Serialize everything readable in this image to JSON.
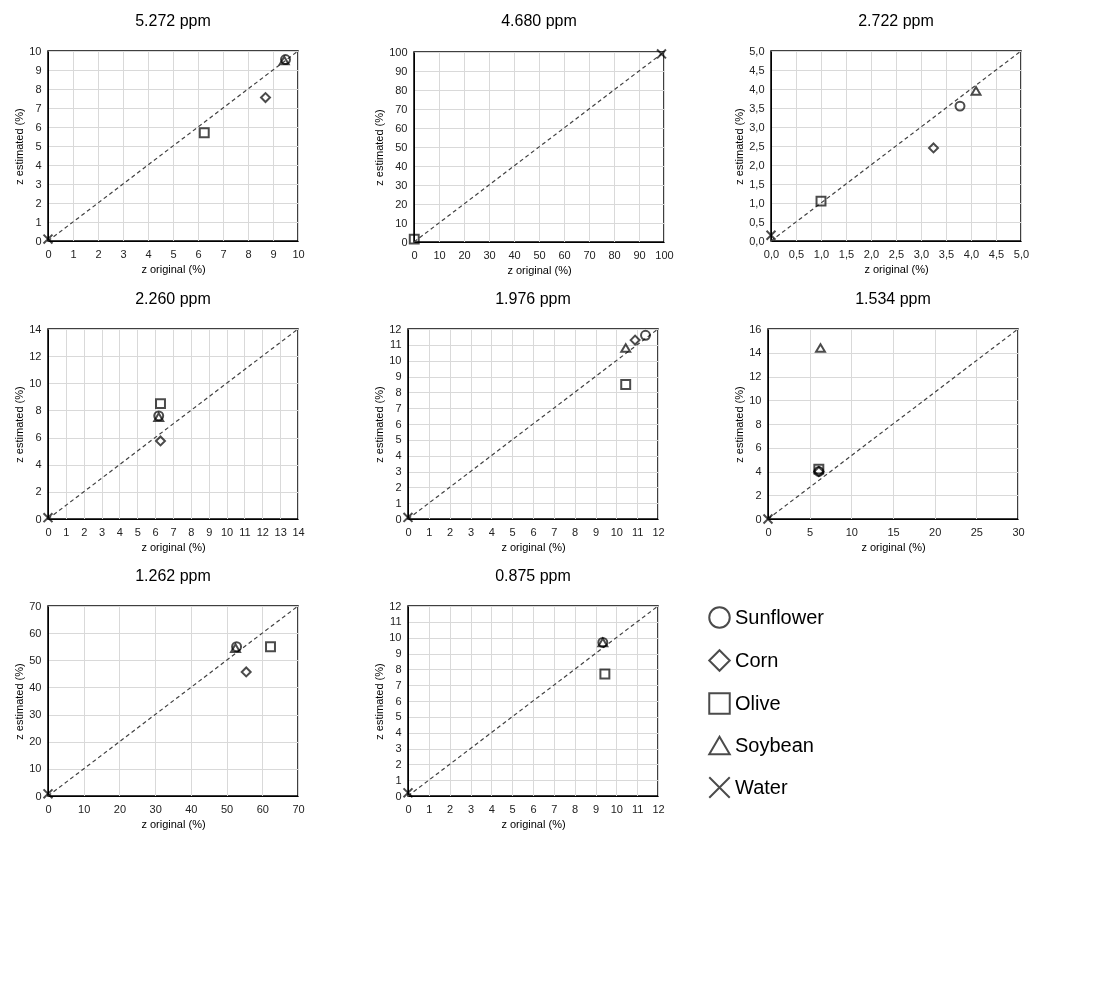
{
  "chart_data": [
    {
      "type": "scatter",
      "title": "5.272 ppm",
      "xlabel": "z original (%)",
      "ylabel": "z estimated (%)",
      "xlim": [
        0,
        10
      ],
      "ylim": [
        0,
        10
      ],
      "xticks": [
        0,
        1,
        2,
        3,
        4,
        5,
        6,
        7,
        8,
        9,
        10
      ],
      "yticks": [
        0,
        1,
        2,
        3,
        4,
        5,
        6,
        7,
        8,
        9,
        10
      ],
      "grid": true,
      "series": [
        {
          "type": "line",
          "color": "#404040",
          "line_style": "dashed",
          "marker": "none",
          "x": [
            0,
            10
          ],
          "values": [
            0,
            10
          ]
        },
        {
          "color": "#000000",
          "marker": "circle",
          "x": [
            9.5
          ],
          "values": [
            9.55
          ]
        },
        {
          "color": "#000000",
          "marker": "diamond",
          "x": [
            8.7
          ],
          "values": [
            7.55
          ]
        },
        {
          "color": "#000000",
          "marker": "square",
          "x": [
            6.25
          ],
          "values": [
            5.7
          ]
        },
        {
          "color": "#000000",
          "marker": "triangle",
          "x": [
            9.45
          ],
          "values": [
            9.5
          ]
        },
        {
          "color": "#000000",
          "marker": "cross",
          "x": [
            0
          ],
          "values": [
            0.1
          ]
        }
      ]
    },
    {
      "type": "scatter",
      "title": "4.680 ppm",
      "xlabel": "z original (%)",
      "ylabel": "z estimated (%)",
      "xlim": [
        0,
        100
      ],
      "ylim": [
        0,
        100
      ],
      "xticks": [
        0,
        10,
        20,
        30,
        40,
        50,
        60,
        70,
        80,
        90,
        100
      ],
      "yticks": [
        0,
        10,
        20,
        30,
        40,
        50,
        60,
        70,
        80,
        90,
        100
      ],
      "grid": true,
      "series": [
        {
          "type": "line",
          "color": "#404040",
          "line_style": "dashed",
          "marker": "none",
          "x": [
            0,
            100
          ],
          "values": [
            0,
            100
          ]
        },
        {
          "color": "#000000",
          "marker": "circle",
          "x": [
            null
          ],
          "values": [
            null
          ]
        },
        {
          "color": "#000000",
          "marker": "diamond",
          "x": [
            null
          ],
          "values": [
            null
          ]
        },
        {
          "color": "#000000",
          "marker": "square",
          "x": [
            0.1
          ],
          "values": [
            1.5
          ]
        },
        {
          "color": "#000000",
          "marker": "triangle",
          "x": [
            null
          ],
          "values": [
            null
          ]
        },
        {
          "color": "#000000",
          "marker": "cross",
          "x": [
            99
          ],
          "values": [
            99
          ]
        }
      ]
    },
    {
      "type": "scatter",
      "title": "2.722 ppm",
      "xlabel": "z original (%)",
      "ylabel": "z estimated (%)",
      "xlim": [
        0,
        5
      ],
      "ylim": [
        0,
        5
      ],
      "xticks": [
        {
          "value": 0,
          "label": "0,0"
        },
        {
          "value": 0.5,
          "label": "0,5"
        },
        {
          "value": 1,
          "label": "1,0"
        },
        {
          "value": 1.5,
          "label": "1,5"
        },
        {
          "value": 2,
          "label": "2,0"
        },
        {
          "value": 2.5,
          "label": "2,5"
        },
        {
          "value": 3,
          "label": "3,0"
        },
        {
          "value": 3.5,
          "label": "3,5"
        },
        {
          "value": 4,
          "label": "4,0"
        },
        {
          "value": 4.5,
          "label": "4,5"
        },
        {
          "value": 5,
          "label": "5,0"
        }
      ],
      "yticks": [
        {
          "value": 0,
          "label": "0,0"
        },
        {
          "value": 0.5,
          "label": "0,5"
        },
        {
          "value": 1,
          "label": "1,0"
        },
        {
          "value": 1.5,
          "label": "1,5"
        },
        {
          "value": 2,
          "label": "2,0"
        },
        {
          "value": 2.5,
          "label": "2,5"
        },
        {
          "value": 3,
          "label": "3,0"
        },
        {
          "value": 3.5,
          "label": "3,5"
        },
        {
          "value": 4,
          "label": "4,0"
        },
        {
          "value": 4.5,
          "label": "4,5"
        },
        {
          "value": 5,
          "label": "5,0"
        }
      ],
      "grid": true,
      "series": [
        {
          "type": "line",
          "color": "#404040",
          "line_style": "dashed",
          "marker": "none",
          "x": [
            0,
            5
          ],
          "values": [
            0,
            5
          ]
        },
        {
          "color": "#000000",
          "marker": "circle",
          "x": [
            3.78
          ],
          "values": [
            3.55
          ]
        },
        {
          "color": "#000000",
          "marker": "diamond",
          "x": [
            3.25
          ],
          "values": [
            2.45
          ]
        },
        {
          "color": "#000000",
          "marker": "square",
          "x": [
            1.0
          ],
          "values": [
            1.05
          ]
        },
        {
          "color": "#000000",
          "marker": "triangle",
          "x": [
            4.1
          ],
          "values": [
            3.95
          ]
        },
        {
          "color": "#000000",
          "marker": "cross",
          "x": [
            0
          ],
          "values": [
            0.15
          ]
        }
      ]
    },
    {
      "type": "scatter",
      "title": "2.260 ppm",
      "xlabel": "z original (%)",
      "ylabel": "z estimated (%)",
      "xlim": [
        0,
        14
      ],
      "ylim": [
        0,
        14
      ],
      "xticks": [
        0,
        1,
        2,
        3,
        4,
        5,
        6,
        7,
        8,
        9,
        10,
        11,
        12,
        13,
        14
      ],
      "yticks": [
        0,
        2,
        4,
        6,
        8,
        10,
        12,
        14
      ],
      "grid": true,
      "series": [
        {
          "type": "line",
          "color": "#404040",
          "line_style": "dashed",
          "marker": "none",
          "x": [
            0,
            14
          ],
          "values": [
            0,
            14
          ]
        },
        {
          "color": "#000000",
          "marker": "circle",
          "x": [
            6.2
          ],
          "values": [
            7.6
          ]
        },
        {
          "color": "#000000",
          "marker": "diamond",
          "x": [
            6.3
          ],
          "values": [
            5.75
          ]
        },
        {
          "color": "#000000",
          "marker": "square",
          "x": [
            6.3
          ],
          "values": [
            8.5
          ]
        },
        {
          "color": "#000000",
          "marker": "triangle",
          "x": [
            6.2
          ],
          "values": [
            7.5
          ]
        },
        {
          "color": "#000000",
          "marker": "cross",
          "x": [
            0
          ],
          "values": [
            0.1
          ]
        }
      ]
    },
    {
      "type": "scatter",
      "title": "1.976 ppm",
      "xlabel": "z original (%)",
      "ylabel": "z estimated (%)",
      "xlim": [
        0,
        12
      ],
      "ylim": [
        0,
        12
      ],
      "xticks": [
        0,
        1,
        2,
        3,
        4,
        5,
        6,
        7,
        8,
        9,
        10,
        11,
        12
      ],
      "yticks": [
        0,
        1,
        2,
        3,
        4,
        5,
        6,
        7,
        8,
        9,
        10,
        11,
        12
      ],
      "grid": true,
      "series": [
        {
          "type": "line",
          "color": "#404040",
          "line_style": "dashed",
          "marker": "none",
          "x": [
            0,
            12
          ],
          "values": [
            0,
            12
          ]
        },
        {
          "color": "#000000",
          "marker": "circle",
          "x": [
            11.4
          ],
          "values": [
            11.6
          ]
        },
        {
          "color": "#000000",
          "marker": "diamond",
          "x": [
            10.9
          ],
          "values": [
            11.3
          ]
        },
        {
          "color": "#000000",
          "marker": "square",
          "x": [
            10.45
          ],
          "values": [
            8.5
          ]
        },
        {
          "color": "#000000",
          "marker": "triangle",
          "x": [
            10.45
          ],
          "values": [
            10.8
          ]
        },
        {
          "color": "#000000",
          "marker": "cross",
          "x": [
            0
          ],
          "values": [
            0.1
          ]
        }
      ]
    },
    {
      "type": "scatter",
      "title": "1.534 ppm",
      "xlabel": "z original (%)",
      "ylabel": "z estimated (%)",
      "xlim": [
        0,
        30
      ],
      "ylim": [
        0,
        16
      ],
      "xticks": [
        0,
        5,
        10,
        15,
        20,
        25,
        30
      ],
      "yticks": [
        0,
        2,
        4,
        6,
        8,
        10,
        12,
        14,
        16
      ],
      "grid": true,
      "series": [
        {
          "type": "line",
          "color": "#404040",
          "line_style": "dashed",
          "marker": "none",
          "x": [
            0,
            30
          ],
          "values": [
            0,
            16
          ]
        },
        {
          "color": "#000000",
          "marker": "circle",
          "x": [
            6.1
          ],
          "values": [
            4.0
          ]
        },
        {
          "color": "#000000",
          "marker": "diamond",
          "x": [
            6.1
          ],
          "values": [
            4.0
          ]
        },
        {
          "color": "#000000",
          "marker": "square",
          "x": [
            6.1
          ],
          "values": [
            4.2
          ]
        },
        {
          "color": "#000000",
          "marker": "triangle",
          "x": [
            6.3
          ],
          "values": [
            14.4
          ]
        },
        {
          "color": "#000000",
          "marker": "cross",
          "x": [
            0
          ],
          "values": [
            0
          ]
        }
      ]
    },
    {
      "type": "scatter",
      "title": "1.262 ppm",
      "xlabel": "z original (%)",
      "ylabel": "z estimated (%)",
      "xlim": [
        0,
        70
      ],
      "ylim": [
        0,
        70
      ],
      "xticks": [
        0,
        10,
        20,
        30,
        40,
        50,
        60,
        70
      ],
      "yticks": [
        0,
        10,
        20,
        30,
        40,
        50,
        60,
        70
      ],
      "grid": true,
      "series": [
        {
          "type": "line",
          "color": "#404040",
          "line_style": "dashed",
          "marker": "none",
          "x": [
            0,
            70
          ],
          "values": [
            0,
            70
          ]
        },
        {
          "color": "#000000",
          "marker": "circle",
          "x": [
            52.8
          ],
          "values": [
            55
          ]
        },
        {
          "color": "#000000",
          "marker": "diamond",
          "x": [
            55.5
          ],
          "values": [
            45.7
          ]
        },
        {
          "color": "#000000",
          "marker": "square",
          "x": [
            62.3
          ],
          "values": [
            55
          ]
        },
        {
          "color": "#000000",
          "marker": "triangle",
          "x": [
            52.5
          ],
          "values": [
            54.5
          ]
        },
        {
          "color": "#000000",
          "marker": "cross",
          "x": [
            0
          ],
          "values": [
            0.8
          ]
        }
      ]
    },
    {
      "type": "scatter",
      "title": "0.875 ppm",
      "xlabel": "z original (%)",
      "ylabel": "z estimated (%)",
      "xlim": [
        0,
        12
      ],
      "ylim": [
        0,
        12
      ],
      "xticks": [
        0,
        1,
        2,
        3,
        4,
        5,
        6,
        7,
        8,
        9,
        10,
        11,
        12
      ],
      "yticks": [
        0,
        1,
        2,
        3,
        4,
        5,
        6,
        7,
        8,
        9,
        10,
        11,
        12
      ],
      "grid": true,
      "legend": "right",
      "series": [
        {
          "type": "line",
          "color": "#404040",
          "line_style": "dashed",
          "marker": "none",
          "x": [
            0,
            12
          ],
          "values": [
            0,
            12
          ]
        },
        {
          "name": "Sunflower",
          "color": "#000000",
          "marker": "circle",
          "x": [
            9.35
          ],
          "values": [
            9.7
          ]
        },
        {
          "name": "Corn",
          "color": "#000000",
          "marker": "diamond",
          "x": [
            null
          ],
          "values": [
            null
          ]
        },
        {
          "name": "Olive",
          "color": "#000000",
          "marker": "square",
          "x": [
            9.45
          ],
          "values": [
            7.7
          ]
        },
        {
          "name": "Soybean",
          "color": "#000000",
          "marker": "triangle",
          "x": [
            9.35
          ],
          "values": [
            9.7
          ]
        },
        {
          "name": "Water",
          "color": "#000000",
          "marker": "cross",
          "x": [
            0
          ],
          "values": [
            0.2
          ]
        }
      ]
    }
  ]
}
